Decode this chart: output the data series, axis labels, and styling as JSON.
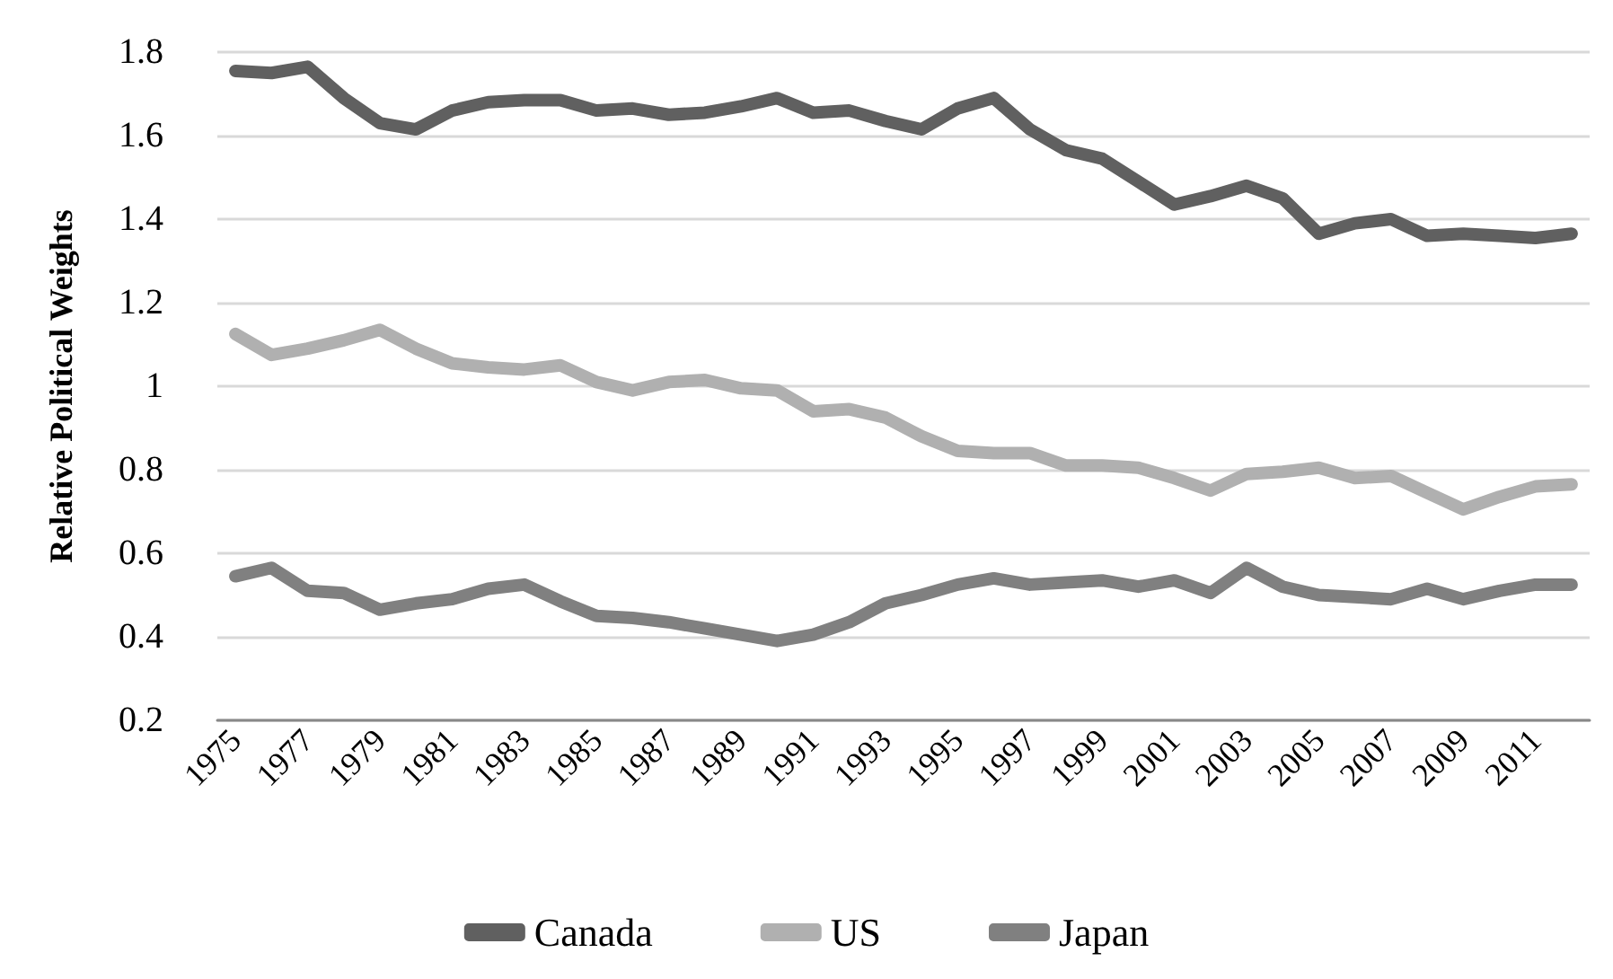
{
  "chart_data": {
    "type": "line",
    "ylabel": "Relative Political Weights",
    "categories": [
      "1975",
      null,
      "1977",
      null,
      "1979",
      null,
      "1981",
      null,
      "1983",
      null,
      "1985",
      null,
      "1987",
      null,
      "1989",
      null,
      "1991",
      null,
      "1993",
      null,
      "1995",
      null,
      "1997",
      null,
      "1999",
      null,
      "2001",
      null,
      "2003",
      null,
      "2005",
      null,
      "2007",
      null,
      "2009",
      null,
      "2011",
      null
    ],
    "series": [
      {
        "name": "Canada",
        "color": "#606060",
        "values": [
          1.755,
          1.75,
          1.765,
          1.69,
          1.63,
          1.615,
          1.66,
          1.68,
          1.685,
          1.685,
          1.66,
          1.665,
          1.65,
          1.655,
          1.67,
          1.69,
          1.655,
          1.66,
          1.635,
          1.615,
          1.665,
          1.69,
          1.615,
          1.565,
          1.545,
          1.49,
          1.435,
          1.455,
          1.48,
          1.45,
          1.365,
          1.39,
          1.4,
          1.36,
          1.365,
          1.36,
          1.355,
          1.365
        ]
      },
      {
        "name": "US",
        "color": "#b0b0b0",
        "values": [
          1.125,
          1.075,
          1.09,
          1.11,
          1.135,
          1.09,
          1.055,
          1.045,
          1.04,
          1.05,
          1.01,
          0.99,
          1.01,
          1.015,
          0.995,
          0.99,
          0.94,
          0.945,
          0.925,
          0.88,
          0.845,
          0.84,
          0.84,
          0.81,
          0.81,
          0.805,
          0.78,
          0.75,
          0.79,
          0.795,
          0.805,
          0.78,
          0.785,
          0.745,
          0.705,
          0.735,
          0.76,
          0.765
        ]
      },
      {
        "name": "Japan",
        "color": "#808080",
        "values": [
          0.545,
          0.565,
          0.51,
          0.505,
          0.465,
          0.48,
          0.49,
          0.515,
          0.525,
          0.485,
          0.45,
          0.445,
          0.435,
          0.42,
          0.405,
          0.39,
          0.405,
          0.435,
          0.48,
          0.5,
          0.525,
          0.54,
          0.525,
          0.53,
          0.535,
          0.52,
          0.535,
          0.505,
          0.565,
          0.52,
          0.5,
          0.495,
          0.49,
          0.515,
          0.49,
          0.51,
          0.525,
          0.525
        ]
      }
    ],
    "ylim": [
      0.2,
      1.8
    ],
    "yticks": [
      0.2,
      0.4,
      0.6,
      0.8,
      1,
      1.2,
      1.4,
      1.6,
      1.8
    ],
    "grid": "y",
    "legend": "bottom",
    "line_style": "solid"
  }
}
